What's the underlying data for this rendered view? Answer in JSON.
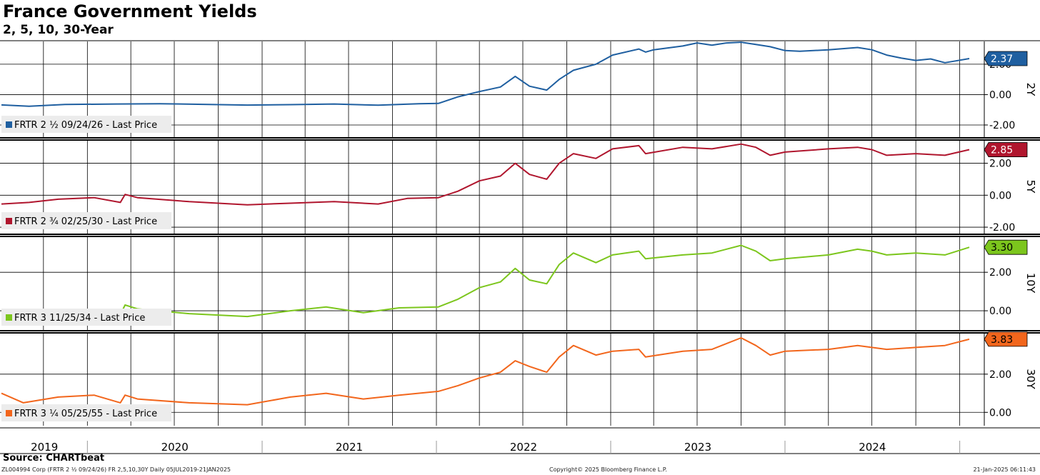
{
  "header": {
    "title": "France Government Yields",
    "subtitle": "2, 5, 10, 30-Year"
  },
  "footer": {
    "source": "Source: CHARTbeat",
    "left_note": "ZL004994 Corp (FRTR 2 ½ 09/24/26) FR 2,5,10,30Y  Daily 05JUL2019-21JAN2025",
    "copyright": "Copyright© 2025 Bloomberg Finance L.P.",
    "timestamp": "21-Jan-2025 06:11:43"
  },
  "chart_data": {
    "type": "line",
    "x_range": [
      "2019-07-05",
      "2025-01-21"
    ],
    "x_tick_labels": [
      "2019",
      "2020",
      "2021",
      "2022",
      "2023",
      "2024"
    ],
    "grid": true,
    "legend_placement": "bottom-left of each panel",
    "panels": [
      {
        "name": "2Y",
        "legend": "FRTR 2 ½ 09/24/26 - Last Price",
        "color": "#1f5fa0",
        "last_value": "2.37",
        "ylim": [
          -2.8,
          3.5
        ],
        "yticks": [
          "2.00",
          "0.00",
          "-2.00"
        ],
        "points": [
          [
            "2019-07-05",
            -0.68
          ],
          [
            "2019-09-01",
            -0.77
          ],
          [
            "2019-11-15",
            -0.65
          ],
          [
            "2020-03-01",
            -0.62
          ],
          [
            "2020-06-01",
            -0.6
          ],
          [
            "2020-12-01",
            -0.69
          ],
          [
            "2021-03-01",
            -0.66
          ],
          [
            "2021-06-01",
            -0.62
          ],
          [
            "2021-09-01",
            -0.7
          ],
          [
            "2021-11-25",
            -0.6
          ],
          [
            "2022-01-05",
            -0.58
          ],
          [
            "2022-02-15",
            -0.15
          ],
          [
            "2022-04-01",
            0.2
          ],
          [
            "2022-05-15",
            0.5
          ],
          [
            "2022-06-15",
            1.2
          ],
          [
            "2022-07-15",
            0.55
          ],
          [
            "2022-08-20",
            0.3
          ],
          [
            "2022-09-15",
            1.0
          ],
          [
            "2022-10-15",
            1.6
          ],
          [
            "2022-12-01",
            2.0
          ],
          [
            "2023-01-05",
            2.6
          ],
          [
            "2023-03-01",
            3.0
          ],
          [
            "2023-03-15",
            2.8
          ],
          [
            "2023-04-01",
            2.95
          ],
          [
            "2023-06-01",
            3.2
          ],
          [
            "2023-07-01",
            3.4
          ],
          [
            "2023-08-01",
            3.25
          ],
          [
            "2023-09-01",
            3.4
          ],
          [
            "2023-10-01",
            3.45
          ],
          [
            "2023-11-01",
            3.3
          ],
          [
            "2023-12-01",
            3.15
          ],
          [
            "2024-01-01",
            2.9
          ],
          [
            "2024-02-01",
            2.85
          ],
          [
            "2024-04-01",
            2.95
          ],
          [
            "2024-06-01",
            3.1
          ],
          [
            "2024-07-01",
            2.95
          ],
          [
            "2024-08-01",
            2.6
          ],
          [
            "2024-09-01",
            2.4
          ],
          [
            "2024-10-01",
            2.25
          ],
          [
            "2024-11-01",
            2.35
          ],
          [
            "2024-12-01",
            2.1
          ],
          [
            "2024-12-20",
            2.2
          ],
          [
            "2025-01-21",
            2.37
          ]
        ]
      },
      {
        "name": "5Y",
        "legend": "FRTR 2 ¾ 02/25/30 - Last Price",
        "color": "#b0162e",
        "last_value": "2.85",
        "ylim": [
          -2.4,
          3.5
        ],
        "yticks": [
          "2.00",
          "0.00",
          "-2.00"
        ],
        "points": [
          [
            "2019-07-05",
            -0.55
          ],
          [
            "2019-09-01",
            -0.45
          ],
          [
            "2019-11-01",
            -0.25
          ],
          [
            "2020-01-15",
            -0.15
          ],
          [
            "2020-03-10",
            -0.45
          ],
          [
            "2020-03-20",
            0.05
          ],
          [
            "2020-04-15",
            -0.15
          ],
          [
            "2020-08-01",
            -0.4
          ],
          [
            "2020-12-01",
            -0.6
          ],
          [
            "2021-03-01",
            -0.5
          ],
          [
            "2021-06-01",
            -0.4
          ],
          [
            "2021-09-01",
            -0.55
          ],
          [
            "2021-11-01",
            -0.2
          ],
          [
            "2022-01-05",
            -0.15
          ],
          [
            "2022-02-15",
            0.25
          ],
          [
            "2022-04-01",
            0.9
          ],
          [
            "2022-05-15",
            1.2
          ],
          [
            "2022-06-15",
            2.0
          ],
          [
            "2022-07-15",
            1.3
          ],
          [
            "2022-08-20",
            1.0
          ],
          [
            "2022-09-15",
            2.0
          ],
          [
            "2022-10-15",
            2.6
          ],
          [
            "2022-12-01",
            2.3
          ],
          [
            "2023-01-05",
            2.9
          ],
          [
            "2023-03-01",
            3.1
          ],
          [
            "2023-03-15",
            2.6
          ],
          [
            "2023-06-01",
            3.0
          ],
          [
            "2023-08-01",
            2.9
          ],
          [
            "2023-10-01",
            3.2
          ],
          [
            "2023-11-01",
            3.0
          ],
          [
            "2023-12-01",
            2.5
          ],
          [
            "2024-01-01",
            2.7
          ],
          [
            "2024-04-01",
            2.9
          ],
          [
            "2024-06-01",
            3.0
          ],
          [
            "2024-07-01",
            2.85
          ],
          [
            "2024-08-01",
            2.5
          ],
          [
            "2024-10-01",
            2.6
          ],
          [
            "2024-12-01",
            2.5
          ],
          [
            "2025-01-21",
            2.85
          ]
        ]
      },
      {
        "name": "10Y",
        "legend": "FRTR 3 11/25/34 - Last Price",
        "color": "#7cc61d",
        "last_value": "3.30",
        "ylim": [
          -1.0,
          3.9
        ],
        "yticks": [
          "2.00",
          "0.00"
        ],
        "points": [
          [
            "2019-07-05",
            0.0
          ],
          [
            "2019-08-20",
            -0.35
          ],
          [
            "2019-11-01",
            0.0
          ],
          [
            "2020-01-15",
            0.05
          ],
          [
            "2020-03-10",
            -0.2
          ],
          [
            "2020-03-20",
            0.3
          ],
          [
            "2020-04-15",
            0.1
          ],
          [
            "2020-08-01",
            -0.15
          ],
          [
            "2020-12-01",
            -0.3
          ],
          [
            "2021-03-01",
            0.0
          ],
          [
            "2021-05-15",
            0.2
          ],
          [
            "2021-08-01",
            -0.1
          ],
          [
            "2021-10-15",
            0.15
          ],
          [
            "2022-01-05",
            0.2
          ],
          [
            "2022-02-15",
            0.6
          ],
          [
            "2022-04-01",
            1.2
          ],
          [
            "2022-05-15",
            1.5
          ],
          [
            "2022-06-15",
            2.2
          ],
          [
            "2022-07-15",
            1.6
          ],
          [
            "2022-08-20",
            1.4
          ],
          [
            "2022-09-15",
            2.4
          ],
          [
            "2022-10-15",
            3.0
          ],
          [
            "2022-12-01",
            2.5
          ],
          [
            "2023-01-05",
            2.9
          ],
          [
            "2023-03-01",
            3.1
          ],
          [
            "2023-03-15",
            2.7
          ],
          [
            "2023-06-01",
            2.9
          ],
          [
            "2023-08-01",
            3.0
          ],
          [
            "2023-10-01",
            3.4
          ],
          [
            "2023-11-01",
            3.1
          ],
          [
            "2023-12-01",
            2.6
          ],
          [
            "2024-01-01",
            2.7
          ],
          [
            "2024-04-01",
            2.9
          ],
          [
            "2024-06-01",
            3.2
          ],
          [
            "2024-07-01",
            3.1
          ],
          [
            "2024-08-01",
            2.9
          ],
          [
            "2024-10-01",
            3.0
          ],
          [
            "2024-12-01",
            2.9
          ],
          [
            "2025-01-21",
            3.3
          ]
        ]
      },
      {
        "name": "30Y",
        "legend": "FRTR 3 ¼ 05/25/55 - Last Price",
        "color": "#f2661c",
        "last_value": "3.83",
        "ylim": [
          -0.7,
          4.2
        ],
        "yticks": [
          "2.00",
          "0.00"
        ],
        "points": [
          [
            "2019-07-05",
            1.0
          ],
          [
            "2019-08-20",
            0.5
          ],
          [
            "2019-11-01",
            0.8
          ],
          [
            "2020-01-15",
            0.9
          ],
          [
            "2020-03-10",
            0.5
          ],
          [
            "2020-03-20",
            0.9
          ],
          [
            "2020-04-15",
            0.7
          ],
          [
            "2020-08-01",
            0.5
          ],
          [
            "2020-12-01",
            0.4
          ],
          [
            "2021-03-01",
            0.8
          ],
          [
            "2021-05-15",
            1.0
          ],
          [
            "2021-08-01",
            0.7
          ],
          [
            "2021-10-15",
            0.9
          ],
          [
            "2022-01-05",
            1.1
          ],
          [
            "2022-02-15",
            1.4
          ],
          [
            "2022-04-01",
            1.8
          ],
          [
            "2022-05-15",
            2.1
          ],
          [
            "2022-06-15",
            2.7
          ],
          [
            "2022-07-15",
            2.4
          ],
          [
            "2022-08-20",
            2.1
          ],
          [
            "2022-09-15",
            2.9
          ],
          [
            "2022-10-15",
            3.5
          ],
          [
            "2022-12-01",
            3.0
          ],
          [
            "2023-01-05",
            3.2
          ],
          [
            "2023-03-01",
            3.3
          ],
          [
            "2023-03-15",
            2.9
          ],
          [
            "2023-06-01",
            3.2
          ],
          [
            "2023-08-01",
            3.3
          ],
          [
            "2023-10-01",
            3.9
          ],
          [
            "2023-11-01",
            3.5
          ],
          [
            "2023-12-01",
            3.0
          ],
          [
            "2024-01-01",
            3.2
          ],
          [
            "2024-04-01",
            3.3
          ],
          [
            "2024-06-01",
            3.5
          ],
          [
            "2024-07-01",
            3.4
          ],
          [
            "2024-08-01",
            3.3
          ],
          [
            "2024-10-01",
            3.4
          ],
          [
            "2024-12-01",
            3.5
          ],
          [
            "2025-01-21",
            3.83
          ]
        ]
      }
    ]
  }
}
